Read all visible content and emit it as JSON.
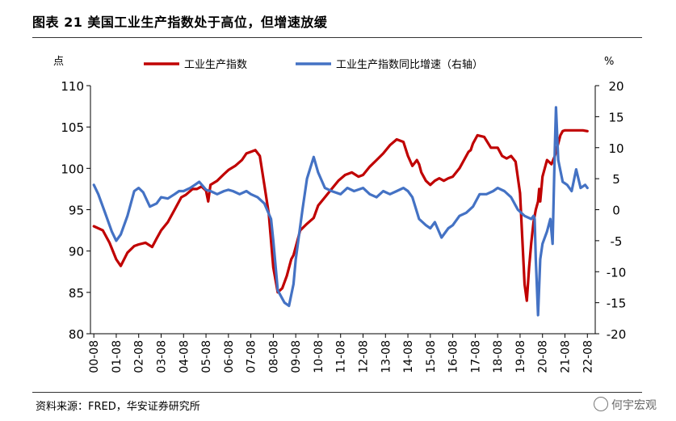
{
  "figure": {
    "title": "图表 21 美国工业生产指数处于高位，但增速放缓",
    "source": "资料来源：FRED，华安证券研究所",
    "watermark": "何宇宏观"
  },
  "chart_data": {
    "type": "line",
    "left_unit": "点",
    "right_unit": "%",
    "left_ylim": [
      80,
      110
    ],
    "left_ticks": [
      "80",
      "85",
      "90",
      "95",
      "100",
      "105",
      "110"
    ],
    "right_ylim": [
      -20,
      20
    ],
    "right_ticks": [
      "-20",
      "-15",
      "-10",
      "-5",
      "0",
      "5",
      "10",
      "15",
      "20"
    ],
    "x_tick_labels": [
      "00-08",
      "01-08",
      "02-08",
      "03-08",
      "04-08",
      "05-08",
      "06-08",
      "07-08",
      "08-08",
      "09-08",
      "10-08",
      "11-08",
      "12-08",
      "13-08",
      "14-08",
      "15-08",
      "16-08",
      "17-08",
      "18-08",
      "19-08",
      "20-08",
      "21-08",
      "22-08"
    ],
    "series": [
      {
        "name": "工业生产指数",
        "axis": "left",
        "color": "#c00000",
        "x": [
          0,
          0.4,
          0.7,
          1.0,
          1.2,
          1.5,
          1.8,
          2.0,
          2.3,
          2.6,
          2.8,
          3.0,
          3.3,
          3.6,
          3.9,
          4.1,
          4.4,
          4.6,
          4.8,
          5.0,
          5.1,
          5.2,
          5.5,
          5.8,
          6.0,
          6.3,
          6.6,
          6.8,
          7.0,
          7.2,
          7.4,
          7.6,
          7.8,
          8.0,
          8.2,
          8.4,
          8.6,
          8.8,
          8.9,
          9.0,
          9.2,
          9.5,
          9.8,
          10.0,
          10.3,
          10.6,
          10.9,
          11.2,
          11.5,
          11.8,
          12.0,
          12.3,
          12.6,
          12.9,
          13.2,
          13.5,
          13.8,
          14.0,
          14.2,
          14.4,
          14.5,
          14.6,
          14.8,
          15.0,
          15.2,
          15.4,
          15.6,
          15.8,
          16.0,
          16.3,
          16.5,
          16.7,
          16.8,
          16.9,
          17.1,
          17.4,
          17.7,
          18.0,
          18.2,
          18.4,
          18.6,
          18.8,
          19.0,
          19.2,
          19.3,
          19.4,
          19.5,
          19.6,
          19.7,
          19.8,
          19.85,
          19.9,
          20.0,
          20.2,
          20.4,
          20.55,
          20.6,
          20.7,
          20.8,
          20.9,
          21.0,
          21.2,
          21.4,
          21.6,
          21.8,
          22.0
        ],
        "y": [
          93.0,
          92.5,
          91.0,
          89.0,
          88.2,
          89.8,
          90.6,
          90.8,
          91.0,
          90.5,
          91.5,
          92.5,
          93.5,
          95.0,
          96.5,
          96.8,
          97.5,
          97.5,
          97.8,
          97.3,
          96.0,
          98.0,
          98.5,
          99.3,
          99.8,
          100.3,
          101.0,
          101.8,
          102.0,
          102.2,
          101.5,
          98.0,
          94.5,
          88.0,
          85.0,
          85.5,
          87.0,
          89.0,
          89.5,
          90.5,
          92.5,
          93.3,
          94.0,
          95.5,
          96.5,
          97.5,
          98.5,
          99.2,
          99.5,
          99.0,
          99.2,
          100.2,
          101.0,
          101.8,
          102.8,
          103.5,
          103.2,
          101.5,
          100.3,
          101.0,
          100.5,
          99.5,
          98.5,
          98.0,
          98.5,
          98.8,
          98.5,
          98.8,
          99.0,
          100.0,
          101.0,
          102.0,
          102.2,
          103.0,
          104.0,
          103.8,
          102.5,
          102.5,
          101.5,
          101.2,
          101.5,
          100.8,
          97.0,
          86.0,
          84.0,
          88.0,
          91.0,
          93.5,
          95.0,
          96.0,
          97.5,
          96.0,
          99.0,
          101.0,
          100.5,
          101.5,
          102.0,
          103.0,
          104.0,
          104.5,
          104.6,
          104.6,
          104.6,
          104.6,
          104.6,
          104.5
        ],
        "note": "x values are in years since Aug 2000 (tick index)"
      },
      {
        "name": "工业生产指数同比增速（右轴）",
        "axis": "right",
        "color": "#4472c4",
        "x": [
          0,
          0.2,
          0.5,
          0.8,
          1.0,
          1.2,
          1.5,
          1.8,
          2.0,
          2.2,
          2.5,
          2.8,
          3.0,
          3.3,
          3.6,
          3.8,
          4.0,
          4.3,
          4.5,
          4.7,
          5.0,
          5.2,
          5.5,
          5.8,
          6.0,
          6.2,
          6.5,
          6.8,
          7.0,
          7.3,
          7.6,
          7.9,
          8.0,
          8.2,
          8.5,
          8.7,
          8.9,
          9.0,
          9.3,
          9.5,
          9.8,
          10.0,
          10.3,
          10.6,
          11.0,
          11.3,
          11.6,
          12.0,
          12.3,
          12.6,
          12.9,
          13.2,
          13.5,
          13.8,
          14.0,
          14.2,
          14.5,
          14.8,
          15.0,
          15.2,
          15.5,
          15.8,
          16.0,
          16.3,
          16.6,
          16.9,
          17.2,
          17.5,
          17.8,
          18.0,
          18.3,
          18.6,
          18.9,
          19.2,
          19.5,
          19.6,
          19.65,
          19.7,
          19.8,
          19.9,
          20.0,
          20.2,
          20.35,
          20.45,
          20.55,
          20.6,
          20.7,
          20.9,
          21.1,
          21.3,
          21.5,
          21.7,
          21.9,
          22.0
        ],
        "y": [
          4.0,
          2.5,
          -0.5,
          -3.5,
          -5.0,
          -4.0,
          -1.0,
          3.0,
          3.5,
          2.8,
          0.5,
          1.0,
          2.0,
          1.8,
          2.5,
          3.0,
          3.0,
          3.5,
          4.0,
          4.5,
          3.2,
          3.0,
          2.5,
          3.0,
          3.2,
          3.0,
          2.5,
          3.0,
          2.5,
          2.0,
          1.0,
          -1.5,
          -5.0,
          -13.0,
          -15.0,
          -15.5,
          -12.0,
          -8.0,
          0.0,
          5.0,
          8.5,
          6.0,
          3.5,
          3.0,
          2.5,
          3.5,
          3.0,
          3.5,
          2.5,
          2.0,
          3.0,
          2.5,
          3.0,
          3.5,
          3.0,
          2.0,
          -1.5,
          -2.5,
          -3.0,
          -2.0,
          -4.5,
          -3.0,
          -2.5,
          -1.0,
          -0.5,
          0.5,
          2.5,
          2.5,
          3.0,
          3.5,
          3.0,
          2.0,
          0.0,
          -1.0,
          -1.5,
          -1.0,
          -1.5,
          -8.0,
          -17.0,
          -8.0,
          -5.5,
          -3.5,
          -1.5,
          -5.5,
          10.0,
          16.5,
          8.0,
          4.5,
          4.0,
          3.0,
          6.5,
          3.5,
          4.0,
          3.5
        ]
      }
    ]
  }
}
